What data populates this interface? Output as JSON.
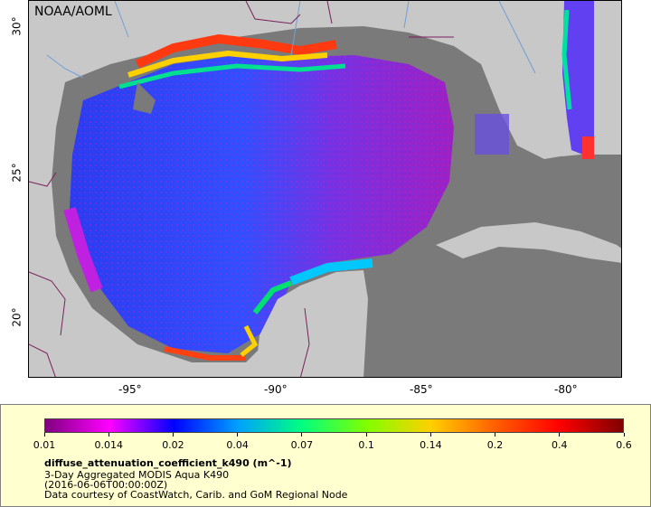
{
  "credit": "NOAA/AOML",
  "y_ticks": [
    {
      "label": "30°"
    },
    {
      "label": "25°"
    },
    {
      "label": "20°"
    }
  ],
  "x_ticks": [
    {
      "label": "-95°"
    },
    {
      "label": "-90°"
    },
    {
      "label": "-85°"
    },
    {
      "label": "-80°"
    }
  ],
  "colors": {
    "land": "#c8c8c8",
    "no_data": "#7a7a7a",
    "legend_bg": "#ffffd0",
    "border_line": "#7a1f5a",
    "river": "#6fa0d8"
  },
  "colorbar": {
    "labels": [
      "0.01",
      "0.014",
      "0.02",
      "0.04",
      "0.07",
      "0.1",
      "0.14",
      "0.2",
      "0.4",
      "0.6"
    ],
    "stops": [
      "#800080",
      "#ff00ff",
      "#0000ff",
      "#00a0ff",
      "#00ff80",
      "#80ff00",
      "#ffd000",
      "#ff6000",
      "#ff0000",
      "#800000"
    ]
  },
  "legend": {
    "variable": "diffuse_attenuation_coefficient_k490 (m^-1)",
    "dataset": "3-Day Aggregated MODIS Aqua K490",
    "time": "(2016-06-06T00:00:00Z)",
    "courtesy": "Data courtesy of CoastWatch, Carib. and GoM Regional Node"
  }
}
